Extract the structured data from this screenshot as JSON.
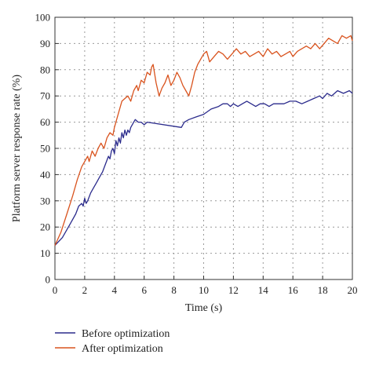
{
  "chart_data": {
    "type": "line",
    "title": "",
    "xlabel": "Time (s)",
    "ylabel": "Platform server response rate (%)",
    "xlim": [
      0,
      20
    ],
    "ylim": [
      0,
      100
    ],
    "xticks": [
      0,
      2,
      4,
      6,
      8,
      10,
      12,
      14,
      16,
      18,
      20
    ],
    "yticks": [
      0,
      10,
      20,
      30,
      40,
      50,
      60,
      70,
      80,
      90,
      100
    ],
    "grid": "dotted",
    "legend_position": "bottom-left",
    "series": [
      {
        "name": "Before optimization",
        "color": "#2b2b8c",
        "points": [
          [
            0,
            13
          ],
          [
            0.5,
            16
          ],
          [
            1,
            21
          ],
          [
            1.4,
            25
          ],
          [
            1.6,
            28
          ],
          [
            1.8,
            29
          ],
          [
            1.9,
            28
          ],
          [
            2.0,
            31
          ],
          [
            2.1,
            29
          ],
          [
            2.2,
            30
          ],
          [
            2.4,
            33
          ],
          [
            2.6,
            35
          ],
          [
            2.8,
            37
          ],
          [
            3.0,
            39
          ],
          [
            3.2,
            41
          ],
          [
            3.4,
            44
          ],
          [
            3.6,
            47
          ],
          [
            3.7,
            46
          ],
          [
            3.8,
            49
          ],
          [
            3.9,
            50
          ],
          [
            4.0,
            48
          ],
          [
            4.1,
            53
          ],
          [
            4.2,
            51
          ],
          [
            4.3,
            54
          ],
          [
            4.4,
            52
          ],
          [
            4.5,
            56
          ],
          [
            4.6,
            54
          ],
          [
            4.7,
            57
          ],
          [
            4.8,
            55
          ],
          [
            4.9,
            57
          ],
          [
            5.0,
            56
          ],
          [
            5.1,
            58
          ],
          [
            5.2,
            59
          ],
          [
            5.3,
            60
          ],
          [
            5.4,
            61
          ],
          [
            5.6,
            60
          ],
          [
            5.8,
            60
          ],
          [
            6.0,
            59
          ],
          [
            6.2,
            60
          ],
          [
            8.5,
            58
          ],
          [
            8.7,
            60
          ],
          [
            9.0,
            61
          ],
          [
            9.5,
            62
          ],
          [
            10,
            63
          ],
          [
            10.5,
            65
          ],
          [
            11,
            66
          ],
          [
            11.3,
            67
          ],
          [
            11.6,
            67
          ],
          [
            11.8,
            66
          ],
          [
            12,
            67
          ],
          [
            12.3,
            66
          ],
          [
            12.6,
            67
          ],
          [
            12.9,
            68
          ],
          [
            13.2,
            67
          ],
          [
            13.5,
            66
          ],
          [
            13.8,
            67
          ],
          [
            14.1,
            67
          ],
          [
            14.4,
            66
          ],
          [
            14.7,
            67
          ],
          [
            15,
            67
          ],
          [
            15.4,
            67
          ],
          [
            15.8,
            68
          ],
          [
            16.2,
            68
          ],
          [
            16.6,
            67
          ],
          [
            17,
            68
          ],
          [
            17.4,
            69
          ],
          [
            17.8,
            70
          ],
          [
            18,
            69
          ],
          [
            18.3,
            71
          ],
          [
            18.6,
            70
          ],
          [
            19,
            72
          ],
          [
            19.4,
            71
          ],
          [
            19.8,
            72
          ],
          [
            20,
            71
          ]
        ]
      },
      {
        "name": "After optimization",
        "color": "#d9531e",
        "points": [
          [
            0,
            13
          ],
          [
            0.4,
            18
          ],
          [
            0.8,
            25
          ],
          [
            1.2,
            32
          ],
          [
            1.5,
            38
          ],
          [
            1.8,
            43
          ],
          [
            2.1,
            46
          ],
          [
            2.2,
            47
          ],
          [
            2.3,
            45
          ],
          [
            2.5,
            49
          ],
          [
            2.7,
            47
          ],
          [
            2.9,
            50
          ],
          [
            3.1,
            52
          ],
          [
            3.3,
            50
          ],
          [
            3.5,
            54
          ],
          [
            3.7,
            56
          ],
          [
            3.9,
            55
          ],
          [
            4.0,
            58
          ],
          [
            4.1,
            60
          ],
          [
            4.3,
            64
          ],
          [
            4.5,
            68
          ],
          [
            4.7,
            69
          ],
          [
            4.9,
            70
          ],
          [
            5.1,
            68
          ],
          [
            5.3,
            72
          ],
          [
            5.5,
            74
          ],
          [
            5.6,
            72
          ],
          [
            5.8,
            76
          ],
          [
            6.0,
            75
          ],
          [
            6.2,
            79
          ],
          [
            6.4,
            78
          ],
          [
            6.5,
            81
          ],
          [
            6.6,
            82
          ],
          [
            6.8,
            75
          ],
          [
            7.0,
            70
          ],
          [
            7.2,
            73
          ],
          [
            7.4,
            75
          ],
          [
            7.6,
            78
          ],
          [
            7.8,
            74
          ],
          [
            8.0,
            76
          ],
          [
            8.2,
            79
          ],
          [
            8.4,
            77
          ],
          [
            8.6,
            74
          ],
          [
            8.8,
            72
          ],
          [
            9.0,
            70
          ],
          [
            9.2,
            74
          ],
          [
            9.4,
            79
          ],
          [
            9.6,
            82
          ],
          [
            9.8,
            84
          ],
          [
            10,
            86
          ],
          [
            10.2,
            87
          ],
          [
            10.4,
            83
          ],
          [
            10.7,
            85
          ],
          [
            11,
            87
          ],
          [
            11.3,
            86
          ],
          [
            11.6,
            84
          ],
          [
            11.9,
            86
          ],
          [
            12.2,
            88
          ],
          [
            12.5,
            86
          ],
          [
            12.8,
            87
          ],
          [
            13.1,
            85
          ],
          [
            13.4,
            86
          ],
          [
            13.7,
            87
          ],
          [
            14.0,
            85
          ],
          [
            14.3,
            88
          ],
          [
            14.6,
            86
          ],
          [
            14.9,
            87
          ],
          [
            15.2,
            85
          ],
          [
            15.5,
            86
          ],
          [
            15.8,
            87
          ],
          [
            16.0,
            85
          ],
          [
            16.3,
            87
          ],
          [
            16.6,
            88
          ],
          [
            16.9,
            89
          ],
          [
            17.2,
            88
          ],
          [
            17.5,
            90
          ],
          [
            17.8,
            88
          ],
          [
            18.1,
            90
          ],
          [
            18.4,
            92
          ],
          [
            18.7,
            91
          ],
          [
            19.0,
            90
          ],
          [
            19.3,
            93
          ],
          [
            19.6,
            92
          ],
          [
            19.9,
            93
          ],
          [
            20,
            91
          ]
        ]
      }
    ]
  }
}
